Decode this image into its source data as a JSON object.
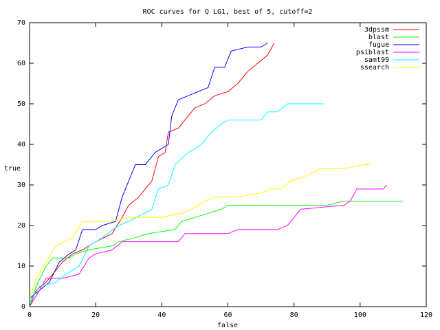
{
  "chart_data": {
    "type": "line",
    "title": "ROC curves for Q LG1, best of 5, cutoff=2",
    "xlabel": "false",
    "ylabel": "true",
    "xlim": [
      0,
      120
    ],
    "ylim": [
      0,
      70
    ],
    "xticks": [
      0,
      20,
      40,
      60,
      80,
      100,
      120
    ],
    "yticks": [
      0,
      10,
      20,
      30,
      40,
      50,
      60,
      70
    ],
    "legend": "top-right",
    "series": [
      {
        "name": "3dpssm",
        "color": "#ff0000",
        "x": [
          0,
          2,
          5,
          8,
          10,
          13,
          16,
          20,
          25,
          28,
          30,
          33,
          35,
          37,
          39,
          41,
          42,
          45,
          48,
          50,
          53,
          56,
          60,
          63,
          66,
          69,
          72,
          74
        ],
        "values": [
          0,
          4,
          6,
          9,
          11,
          13,
          14,
          16,
          18,
          22,
          25,
          27,
          29,
          31,
          37,
          38,
          43,
          44,
          47,
          49,
          50,
          52,
          53,
          55,
          58,
          60,
          62,
          65
        ]
      },
      {
        "name": "blast",
        "color": "#00ff00",
        "x": [
          0,
          2,
          5,
          7,
          12,
          14,
          18,
          25,
          27,
          32,
          36,
          44,
          46,
          50,
          54,
          58,
          60,
          90,
          95,
          113
        ],
        "values": [
          0,
          5,
          10,
          12,
          12,
          13,
          14,
          15,
          16,
          17,
          18,
          19,
          21,
          22,
          23,
          24,
          25,
          25,
          26,
          26
        ]
      },
      {
        "name": "fugue",
        "color": "#0000ff",
        "x": [
          0,
          3,
          6,
          9,
          12,
          14,
          16,
          20,
          22,
          26,
          28,
          30,
          32,
          35,
          38,
          40,
          42,
          43,
          45,
          48,
          54,
          56,
          59,
          61,
          66,
          70,
          72
        ],
        "values": [
          2,
          4,
          6,
          11,
          13,
          14,
          19,
          19,
          20,
          21,
          27,
          31,
          35,
          35,
          38,
          39,
          40,
          47,
          51,
          52,
          54,
          59,
          59,
          63,
          64,
          64,
          65
        ]
      },
      {
        "name": "psiblast",
        "color": "#ff00ff",
        "x": [
          0,
          3,
          5,
          10,
          15,
          18,
          20,
          25,
          28,
          45,
          47,
          60,
          63,
          75,
          78,
          80,
          82,
          95,
          97,
          99,
          107,
          108
        ],
        "values": [
          0,
          4,
          7,
          7,
          8,
          12,
          13,
          14,
          16,
          16,
          18,
          18,
          19,
          19,
          20,
          22,
          24,
          25,
          26,
          29,
          29,
          30
        ]
      },
      {
        "name": "samt99",
        "color": "#00ffff",
        "x": [
          0,
          3,
          8,
          11,
          15,
          18,
          22,
          27,
          30,
          37,
          39,
          42,
          44,
          48,
          52,
          55,
          58,
          60,
          70,
          72,
          75,
          78,
          89
        ],
        "values": [
          1,
          5,
          6,
          8,
          10,
          15,
          17,
          20,
          21,
          24,
          29,
          30,
          35,
          38,
          40,
          43,
          45,
          46,
          46,
          48,
          48,
          50,
          50
        ]
      },
      {
        "name": "ssearch",
        "color": "#ffff00",
        "x": [
          0,
          2,
          5,
          8,
          13,
          16,
          25,
          30,
          40,
          46,
          49,
          53,
          56,
          63,
          70,
          73,
          76,
          79,
          83,
          88,
          95,
          101,
          103
        ],
        "values": [
          2,
          7,
          11,
          15,
          17,
          21,
          21,
          22,
          22,
          23,
          24,
          26,
          27,
          27,
          28,
          29,
          29,
          31,
          32,
          34,
          34,
          35,
          35
        ]
      }
    ]
  }
}
